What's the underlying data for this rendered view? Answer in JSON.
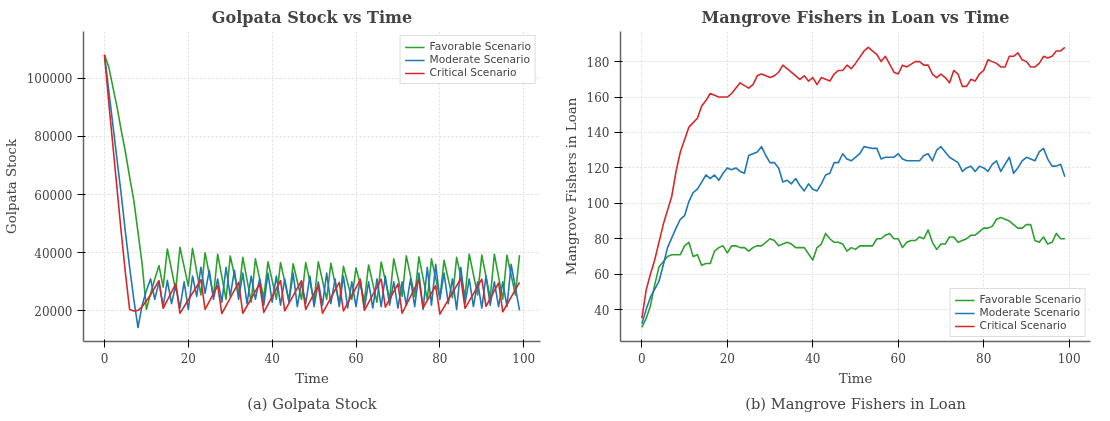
{
  "chart_data": [
    {
      "type": "line",
      "title": "Golpata Stock vs Time",
      "xlabel": "Time",
      "ylabel": "Golpata Stock",
      "annotations": [
        "(a) Golpata Stock"
      ],
      "xlim": [
        -5,
        104
      ],
      "ylim": [
        9500,
        116000
      ],
      "xticks": [
        0,
        20,
        40,
        60,
        80,
        100
      ],
      "yticks": [
        20000,
        40000,
        60000,
        80000,
        100000
      ],
      "grid": true,
      "legend": "top right",
      "line_style": "solid",
      "series": [
        {
          "name": "Favorable Scenario",
          "color": "#2ca02c",
          "x": [
            0,
            1,
            2,
            3,
            4,
            5,
            6,
            7,
            8,
            9,
            10,
            11,
            12,
            13,
            14,
            15,
            17,
            18,
            20,
            21,
            23,
            24,
            26,
            27,
            29,
            30,
            32,
            33,
            35,
            36,
            38,
            39,
            41,
            42,
            44,
            45,
            47,
            48,
            50,
            51,
            53,
            54,
            56,
            57,
            59,
            60,
            62,
            63,
            65,
            66,
            68,
            69,
            71,
            72,
            74,
            75,
            77,
            78,
            80,
            81,
            83,
            84,
            86,
            87,
            89,
            90,
            92,
            93,
            95,
            96,
            98,
            99
          ],
          "values": [
            108000,
            104000,
            97000,
            90000,
            82000,
            74600,
            66000,
            58000,
            47000,
            36000,
            20500,
            26000,
            31000,
            35600,
            28200,
            41300,
            27000,
            41900,
            28500,
            41500,
            25500,
            40000,
            25000,
            39500,
            24000,
            38900,
            25500,
            38400,
            23000,
            37900,
            24500,
            36900,
            24000,
            36600,
            23500,
            36200,
            24000,
            36600,
            23500,
            36900,
            24000,
            36400,
            22500,
            35300,
            24000,
            34800,
            23500,
            35800,
            23000,
            36800,
            24000,
            37900,
            25000,
            38900,
            25000,
            38600,
            24000,
            37900,
            24500,
            37400,
            24500,
            38400,
            25000,
            39500,
            25500,
            39200,
            24500,
            39500,
            24000,
            39200,
            25500,
            39200
          ]
        },
        {
          "name": "Moderate Scenario",
          "color": "#1f77b4",
          "x": [
            0,
            1,
            2,
            3,
            4,
            5,
            6,
            7,
            8,
            9,
            10,
            11,
            12,
            13,
            14,
            15,
            16,
            17,
            18,
            19,
            20,
            21,
            22,
            23,
            24,
            25,
            26,
            27,
            28,
            29,
            30,
            31,
            32,
            33,
            34,
            35,
            36,
            37,
            38,
            39,
            40,
            41,
            42,
            43,
            44,
            45,
            46,
            47,
            48,
            49,
            50,
            51,
            52,
            53,
            54,
            55,
            56,
            57,
            58,
            59,
            60,
            61,
            62,
            63,
            64,
            65,
            66,
            67,
            68,
            69,
            70,
            71,
            72,
            73,
            74,
            75,
            76,
            77,
            78,
            79,
            80,
            81,
            82,
            83,
            84,
            85,
            86,
            87,
            88,
            89,
            90,
            91,
            92,
            93,
            94,
            95,
            96,
            97,
            99
          ],
          "values": [
            108000,
            96000,
            84000,
            72000,
            60000,
            47000,
            35000,
            24000,
            14300,
            22000,
            27000,
            31000,
            24000,
            30000,
            21500,
            30500,
            22500,
            29000,
            21000,
            30000,
            20500,
            32000,
            25000,
            35000,
            26000,
            34000,
            24000,
            31000,
            23000,
            35000,
            25000,
            34000,
            24000,
            33000,
            22500,
            32000,
            24000,
            31000,
            22000,
            33000,
            23000,
            32000,
            22000,
            31000,
            23000,
            33000,
            21500,
            30000,
            22500,
            32000,
            21500,
            30000,
            22000,
            33000,
            22500,
            31000,
            21500,
            32000,
            21000,
            30000,
            21500,
            31000,
            21000,
            30000,
            21000,
            31000,
            21500,
            32000,
            22000,
            30000,
            21000,
            30000,
            22000,
            31000,
            21500,
            33000,
            20500,
            35000,
            22000,
            36000,
            24000,
            33000,
            22500,
            31000,
            20500,
            35000,
            22500,
            31000,
            21500,
            30000,
            21000,
            32000,
            22000,
            30000,
            21500,
            30000,
            21500,
            36000,
            20200
          ]
        },
        {
          "name": "Critical Scenario",
          "color": "#d62728",
          "x": [
            0,
            1,
            2,
            3,
            4,
            5,
            6,
            7,
            8,
            9,
            10,
            11,
            12,
            13,
            14,
            17,
            18,
            23,
            24,
            27,
            28,
            32,
            33,
            37,
            38,
            42,
            43,
            47,
            48,
            51,
            52,
            56,
            57,
            61,
            62,
            66,
            67,
            70,
            71,
            75,
            76,
            79,
            80,
            85,
            86,
            90,
            91,
            94,
            95,
            99
          ],
          "values": [
            108000,
            92000,
            77000,
            62000,
            47000,
            33000,
            20500,
            20000,
            20200,
            21500,
            23500,
            25500,
            28000,
            30400,
            20900,
            29300,
            19200,
            30700,
            20500,
            28700,
            19100,
            29800,
            19200,
            29300,
            19500,
            30400,
            20000,
            30400,
            20500,
            28700,
            19200,
            29800,
            20000,
            30700,
            20200,
            30900,
            21300,
            29300,
            19200,
            30700,
            21100,
            28700,
            18900,
            31100,
            20900,
            30900,
            21600,
            29600,
            19700,
            29800
          ]
        }
      ]
    },
    {
      "type": "line",
      "title": "Mangrove Fishers in Loan vs Time",
      "xlabel": "Time",
      "ylabel": "Mangrove Fishers in Loan",
      "annotations": [
        "(b) Mangrove Fishers in Loan"
      ],
      "xlim": [
        -5,
        105
      ],
      "ylim": [
        22,
        197
      ],
      "xticks": [
        0,
        20,
        40,
        60,
        80,
        100
      ],
      "yticks": [
        40,
        60,
        80,
        100,
        120,
        140,
        160,
        180
      ],
      "grid": true,
      "legend": "bottom right",
      "line_style": "solid",
      "series": [
        {
          "name": "Favorable Scenario",
          "color": "#2ca02c",
          "x": [
            0,
            1,
            2,
            3,
            4,
            5,
            6,
            7,
            9,
            10,
            11,
            12,
            13,
            14,
            15,
            16,
            17,
            18,
            19,
            20,
            21,
            22,
            23,
            24,
            25,
            26,
            27,
            28,
            30,
            31,
            32,
            34,
            35,
            36,
            38,
            40,
            41,
            42,
            43,
            44,
            45,
            46,
            47,
            48,
            49,
            50,
            51,
            54,
            55,
            56,
            57,
            58,
            59,
            60,
            61,
            62,
            63,
            64,
            65,
            66,
            67,
            68,
            69,
            70,
            71,
            72,
            73,
            74,
            75,
            76,
            77,
            78,
            79,
            80,
            81,
            82,
            83,
            84,
            85,
            86,
            87,
            88,
            89,
            90,
            91,
            92,
            93,
            94,
            95,
            96,
            97,
            98,
            99
          ],
          "values": [
            30,
            35,
            42,
            54,
            64,
            67,
            70,
            71,
            71,
            76,
            78,
            70,
            71,
            65,
            66,
            66,
            73,
            75,
            76,
            72,
            76,
            76,
            75,
            75,
            73,
            75,
            76,
            76,
            80,
            79,
            76,
            78,
            77,
            75,
            75,
            68,
            75,
            77,
            83,
            80,
            78,
            78,
            77,
            73,
            75,
            74,
            76,
            76,
            80,
            80,
            82,
            83,
            80,
            80,
            75,
            78,
            79,
            79,
            81,
            80,
            85,
            78,
            74,
            77,
            77,
            81,
            81,
            78,
            79,
            80,
            82,
            82,
            84,
            86,
            86,
            87,
            91,
            92,
            91,
            90,
            88,
            86,
            86,
            88,
            88,
            79,
            78,
            81,
            77,
            78,
            83,
            80,
            80
          ]
        },
        {
          "name": "Moderate Scenario",
          "color": "#1f77b4",
          "x": [
            0,
            1,
            2,
            4,
            5,
            6,
            8,
            9,
            10,
            11,
            12,
            13,
            14,
            15,
            16,
            17,
            18,
            19,
            20,
            21,
            22,
            23,
            24,
            25,
            26,
            27,
            28,
            29,
            30,
            31,
            32,
            33,
            34,
            35,
            36,
            37,
            38,
            39,
            40,
            41,
            42,
            43,
            44,
            45,
            46,
            47,
            48,
            49,
            51,
            52,
            54,
            55,
            56,
            57,
            59,
            60,
            61,
            62,
            65,
            66,
            67,
            68,
            69,
            70,
            71,
            72,
            74,
            75,
            76,
            77,
            78,
            79,
            80,
            81,
            82,
            83,
            84,
            86,
            87,
            88,
            89,
            90,
            92,
            93,
            94,
            95,
            96,
            97,
            98,
            99
          ],
          "values": [
            32,
            40,
            47,
            56,
            65,
            75,
            86,
            91,
            93,
            101,
            106,
            108,
            112,
            116,
            114,
            116,
            113,
            117,
            120,
            119,
            120,
            118,
            117,
            127,
            128,
            129,
            132,
            127,
            123,
            123,
            120,
            112,
            113,
            111,
            114,
            110,
            107,
            111,
            108,
            107,
            111,
            116,
            117,
            123,
            123,
            128,
            125,
            124,
            128,
            132,
            131,
            131,
            125,
            126,
            126,
            128,
            125,
            124,
            124,
            127,
            128,
            124,
            130,
            132,
            129,
            126,
            123,
            118,
            120,
            121,
            118,
            121,
            120,
            118,
            122,
            124,
            118,
            126,
            117,
            120,
            124,
            126,
            124,
            129,
            131,
            125,
            121,
            121,
            122,
            115
          ]
        },
        {
          "name": "Critical Scenario",
          "color": "#d62728",
          "x": [
            0,
            1,
            2,
            3,
            5,
            7,
            8,
            9,
            11,
            13,
            14,
            15,
            16,
            18,
            20,
            21,
            23,
            25,
            26,
            27,
            28,
            30,
            31,
            32,
            33,
            34,
            36,
            37,
            38,
            39,
            40,
            41,
            42,
            44,
            45,
            46,
            47,
            48,
            49,
            50,
            52,
            53,
            55,
            56,
            57,
            59,
            60,
            61,
            62,
            64,
            65,
            66,
            67,
            68,
            69,
            70,
            71,
            72,
            73,
            74,
            75,
            76,
            77,
            78,
            79,
            80,
            81,
            82,
            83,
            84,
            85,
            86,
            87,
            88,
            89,
            90,
            91,
            92,
            93,
            94,
            95,
            96,
            97,
            98,
            99
          ],
          "values": [
            35,
            51,
            60,
            68,
            88,
            104,
            118,
            129,
            143,
            148,
            155,
            158,
            162,
            160,
            160,
            162,
            168,
            165,
            167,
            172,
            173,
            171,
            172,
            174,
            178,
            176,
            172,
            170,
            172,
            169,
            171,
            167,
            171,
            169,
            173,
            175,
            175,
            178,
            176,
            179,
            186,
            188,
            184,
            180,
            183,
            174,
            173,
            178,
            177,
            180,
            180,
            178,
            178,
            173,
            171,
            173,
            171,
            168,
            175,
            173,
            166,
            166,
            170,
            169,
            173,
            175,
            181,
            180,
            179,
            177,
            177,
            183,
            183,
            185,
            181,
            180,
            177,
            177,
            179,
            183,
            182,
            183,
            186,
            186,
            188
          ]
        }
      ]
    }
  ]
}
